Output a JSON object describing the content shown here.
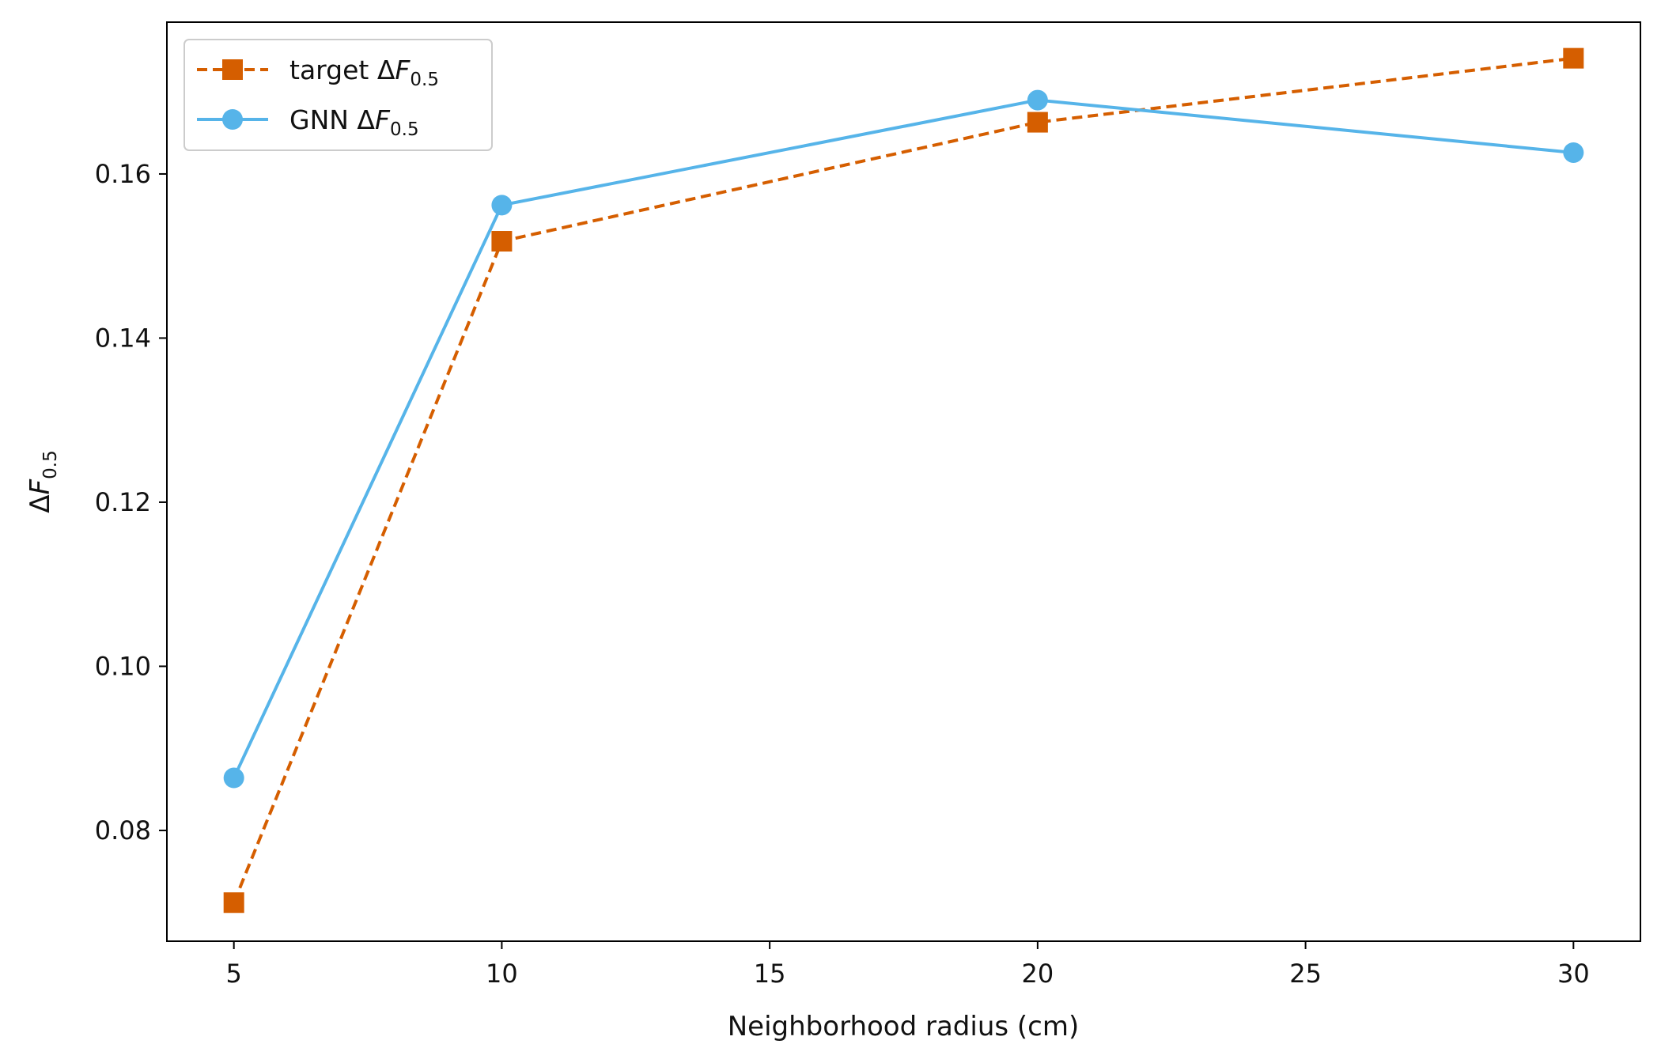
{
  "chart_data": {
    "type": "line",
    "xlabel": "Neighborhood radius (cm)",
    "ylabel": {
      "prefix": "Δ",
      "var": "F",
      "sub": "0.5"
    },
    "xlim": [
      3.75,
      31.25
    ],
    "ylim": [
      0.0665,
      0.1785
    ],
    "xticks": [
      5,
      10,
      15,
      20,
      25,
      30
    ],
    "yticks": [
      0.08,
      0.1,
      0.12,
      0.14,
      0.16
    ],
    "ytick_labels": [
      "0.08",
      "0.10",
      "0.12",
      "0.14",
      "0.16"
    ],
    "grid": false,
    "legend_position": "top-left",
    "series": [
      {
        "name": "target ΔF0.5",
        "legend": {
          "prefix": "target Δ",
          "var": "F",
          "sub": "0.5"
        },
        "color": "#D55E00",
        "line_style": "dashed",
        "marker": "square",
        "x": [
          5,
          10,
          20,
          30
        ],
        "y": [
          0.0712,
          0.1518,
          0.1663,
          0.1741
        ]
      },
      {
        "name": "GNN ΔF0.5",
        "legend": {
          "prefix": "GNN Δ",
          "var": "F",
          "sub": "0.5"
        },
        "color": "#56B4E9",
        "line_style": "solid",
        "marker": "circle",
        "x": [
          5,
          10,
          20,
          30
        ],
        "y": [
          0.0864,
          0.1562,
          0.169,
          0.1626
        ]
      }
    ]
  }
}
